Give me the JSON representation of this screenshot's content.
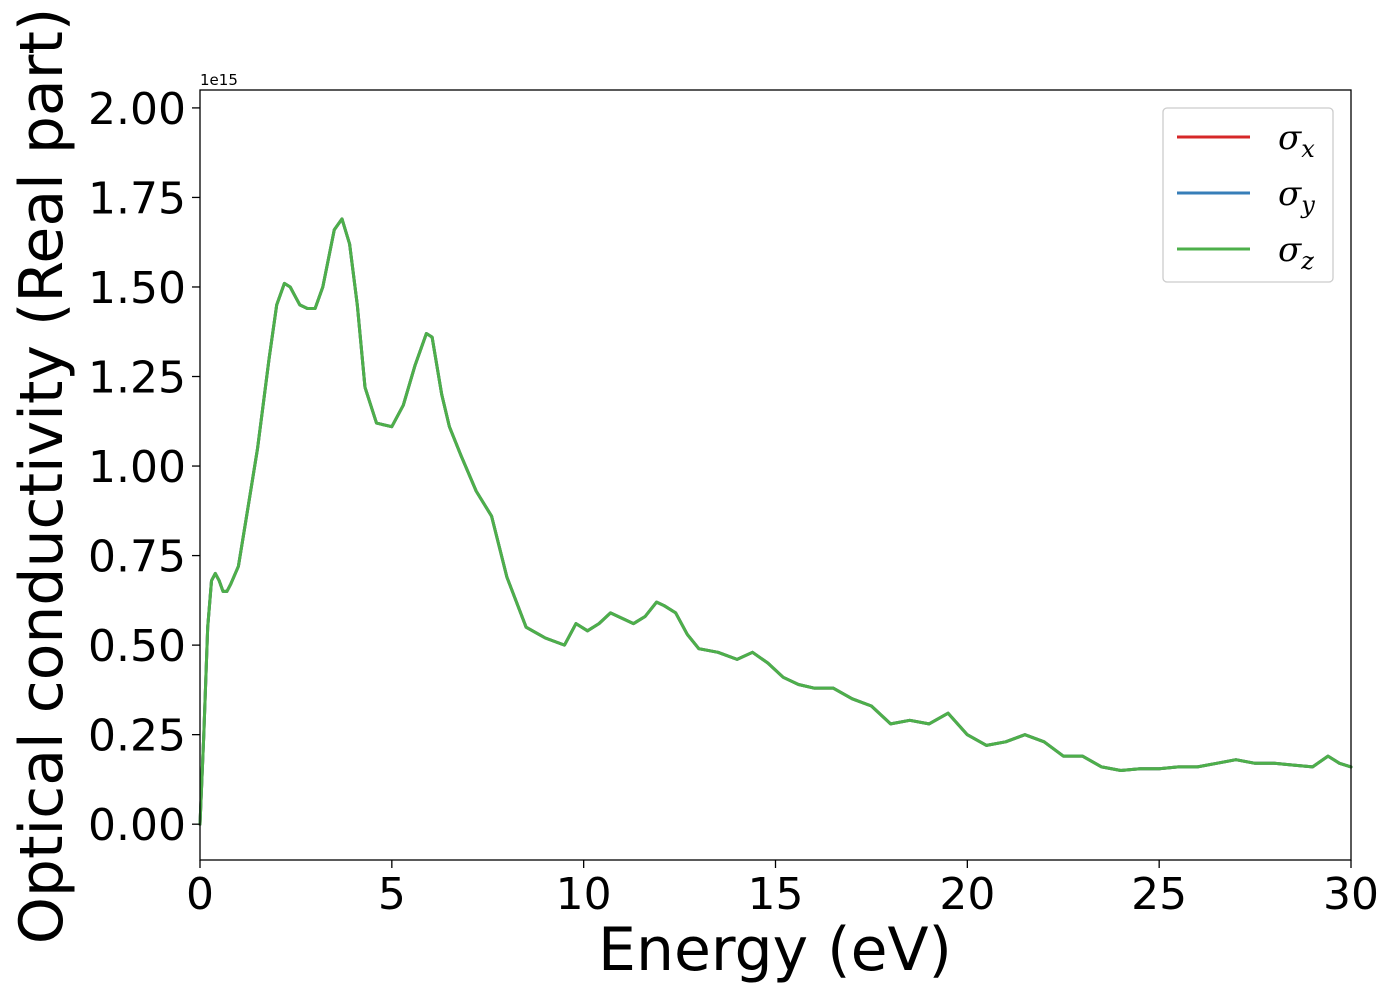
{
  "chart_data": {
    "type": "line",
    "title": "",
    "xlabel": "Energy (eV)",
    "ylabel": "Optical conductivity (Real part)",
    "y_offset_label": "1e15",
    "xlim": [
      0,
      30
    ],
    "ylim": [
      -0.1,
      2.05
    ],
    "x_ticks": [
      0,
      5,
      10,
      15,
      20,
      25,
      30
    ],
    "x_tick_labels": [
      "0",
      "5",
      "10",
      "15",
      "20",
      "25",
      "30"
    ],
    "y_ticks": [
      0.0,
      0.25,
      0.5,
      0.75,
      1.0,
      1.25,
      1.5,
      1.75,
      2.0
    ],
    "y_tick_labels": [
      "0.00",
      "0.25",
      "0.50",
      "0.75",
      "1.00",
      "1.25",
      "1.50",
      "1.75",
      "2.00"
    ],
    "grid": false,
    "legend_position": "top-right",
    "x": [
      0.0,
      0.1,
      0.2,
      0.3,
      0.4,
      0.5,
      0.6,
      0.7,
      0.8,
      1.0,
      1.2,
      1.5,
      1.8,
      2.0,
      2.2,
      2.35,
      2.5,
      2.6,
      2.8,
      3.0,
      3.2,
      3.5,
      3.7,
      3.9,
      4.1,
      4.3,
      4.6,
      5.0,
      5.3,
      5.6,
      5.9,
      6.05,
      6.3,
      6.5,
      6.8,
      7.2,
      7.6,
      8.0,
      8.5,
      9.0,
      9.5,
      9.8,
      10.1,
      10.4,
      10.7,
      10.9,
      11.3,
      11.6,
      11.9,
      12.1,
      12.4,
      12.7,
      13.0,
      13.5,
      14.0,
      14.4,
      14.8,
      15.2,
      15.6,
      16.0,
      16.5,
      17.0,
      17.5,
      18.0,
      18.5,
      19.0,
      19.5,
      20.0,
      20.5,
      21.0,
      21.5,
      22.0,
      22.5,
      23.0,
      23.5,
      24.0,
      24.5,
      25.0,
      25.5,
      26.0,
      26.5,
      27.0,
      27.5,
      28.0,
      28.5,
      29.0,
      29.4,
      29.7,
      30.0
    ],
    "series": [
      {
        "name": "σx",
        "color": "#d62728",
        "values": [
          0.0,
          0.25,
          0.55,
          0.68,
          0.7,
          0.68,
          0.65,
          0.65,
          0.67,
          0.72,
          0.85,
          1.05,
          1.3,
          1.45,
          1.51,
          1.5,
          1.47,
          1.45,
          1.44,
          1.44,
          1.5,
          1.66,
          1.69,
          1.62,
          1.45,
          1.22,
          1.12,
          1.11,
          1.17,
          1.28,
          1.37,
          1.36,
          1.2,
          1.11,
          1.03,
          0.93,
          0.86,
          0.69,
          0.55,
          0.52,
          0.5,
          0.56,
          0.54,
          0.56,
          0.59,
          0.58,
          0.56,
          0.58,
          0.62,
          0.61,
          0.59,
          0.53,
          0.49,
          0.48,
          0.46,
          0.48,
          0.45,
          0.41,
          0.39,
          0.38,
          0.38,
          0.35,
          0.33,
          0.28,
          0.29,
          0.28,
          0.31,
          0.25,
          0.22,
          0.23,
          0.25,
          0.23,
          0.19,
          0.19,
          0.16,
          0.15,
          0.155,
          0.155,
          0.16,
          0.16,
          0.17,
          0.18,
          0.17,
          0.17,
          0.165,
          0.16,
          0.19,
          0.17,
          0.16
        ]
      },
      {
        "name": "σy",
        "color": "#377eb8",
        "values": [
          0.0,
          0.25,
          0.55,
          0.68,
          0.7,
          0.68,
          0.65,
          0.65,
          0.67,
          0.72,
          0.85,
          1.05,
          1.3,
          1.45,
          1.51,
          1.5,
          1.47,
          1.45,
          1.44,
          1.44,
          1.5,
          1.66,
          1.69,
          1.62,
          1.45,
          1.22,
          1.12,
          1.11,
          1.17,
          1.28,
          1.37,
          1.36,
          1.2,
          1.11,
          1.03,
          0.93,
          0.86,
          0.69,
          0.55,
          0.52,
          0.5,
          0.56,
          0.54,
          0.56,
          0.59,
          0.58,
          0.56,
          0.58,
          0.62,
          0.61,
          0.59,
          0.53,
          0.49,
          0.48,
          0.46,
          0.48,
          0.45,
          0.41,
          0.39,
          0.38,
          0.38,
          0.35,
          0.33,
          0.28,
          0.29,
          0.28,
          0.31,
          0.25,
          0.22,
          0.23,
          0.25,
          0.23,
          0.19,
          0.19,
          0.16,
          0.15,
          0.155,
          0.155,
          0.16,
          0.16,
          0.17,
          0.18,
          0.17,
          0.17,
          0.165,
          0.16,
          0.19,
          0.17,
          0.16
        ]
      },
      {
        "name": "σz",
        "color": "#4daf4a",
        "values": [
          0.0,
          0.25,
          0.55,
          0.68,
          0.7,
          0.68,
          0.65,
          0.65,
          0.67,
          0.72,
          0.85,
          1.05,
          1.3,
          1.45,
          1.51,
          1.5,
          1.47,
          1.45,
          1.44,
          1.44,
          1.5,
          1.66,
          1.69,
          1.62,
          1.45,
          1.22,
          1.12,
          1.11,
          1.17,
          1.28,
          1.37,
          1.36,
          1.2,
          1.11,
          1.03,
          0.93,
          0.86,
          0.69,
          0.55,
          0.52,
          0.5,
          0.56,
          0.54,
          0.56,
          0.59,
          0.58,
          0.56,
          0.58,
          0.62,
          0.61,
          0.59,
          0.53,
          0.49,
          0.48,
          0.46,
          0.48,
          0.45,
          0.41,
          0.39,
          0.38,
          0.38,
          0.35,
          0.33,
          0.28,
          0.29,
          0.28,
          0.31,
          0.25,
          0.22,
          0.23,
          0.25,
          0.23,
          0.19,
          0.19,
          0.16,
          0.15,
          0.155,
          0.155,
          0.16,
          0.16,
          0.17,
          0.18,
          0.17,
          0.17,
          0.165,
          0.16,
          0.19,
          0.17,
          0.16
        ]
      }
    ],
    "legend": [
      {
        "symbol": "σ",
        "subscript": "x",
        "color": "#d62728"
      },
      {
        "symbol": "σ",
        "subscript": "y",
        "color": "#377eb8"
      },
      {
        "symbol": "σ",
        "subscript": "z",
        "color": "#4daf4a"
      }
    ]
  }
}
